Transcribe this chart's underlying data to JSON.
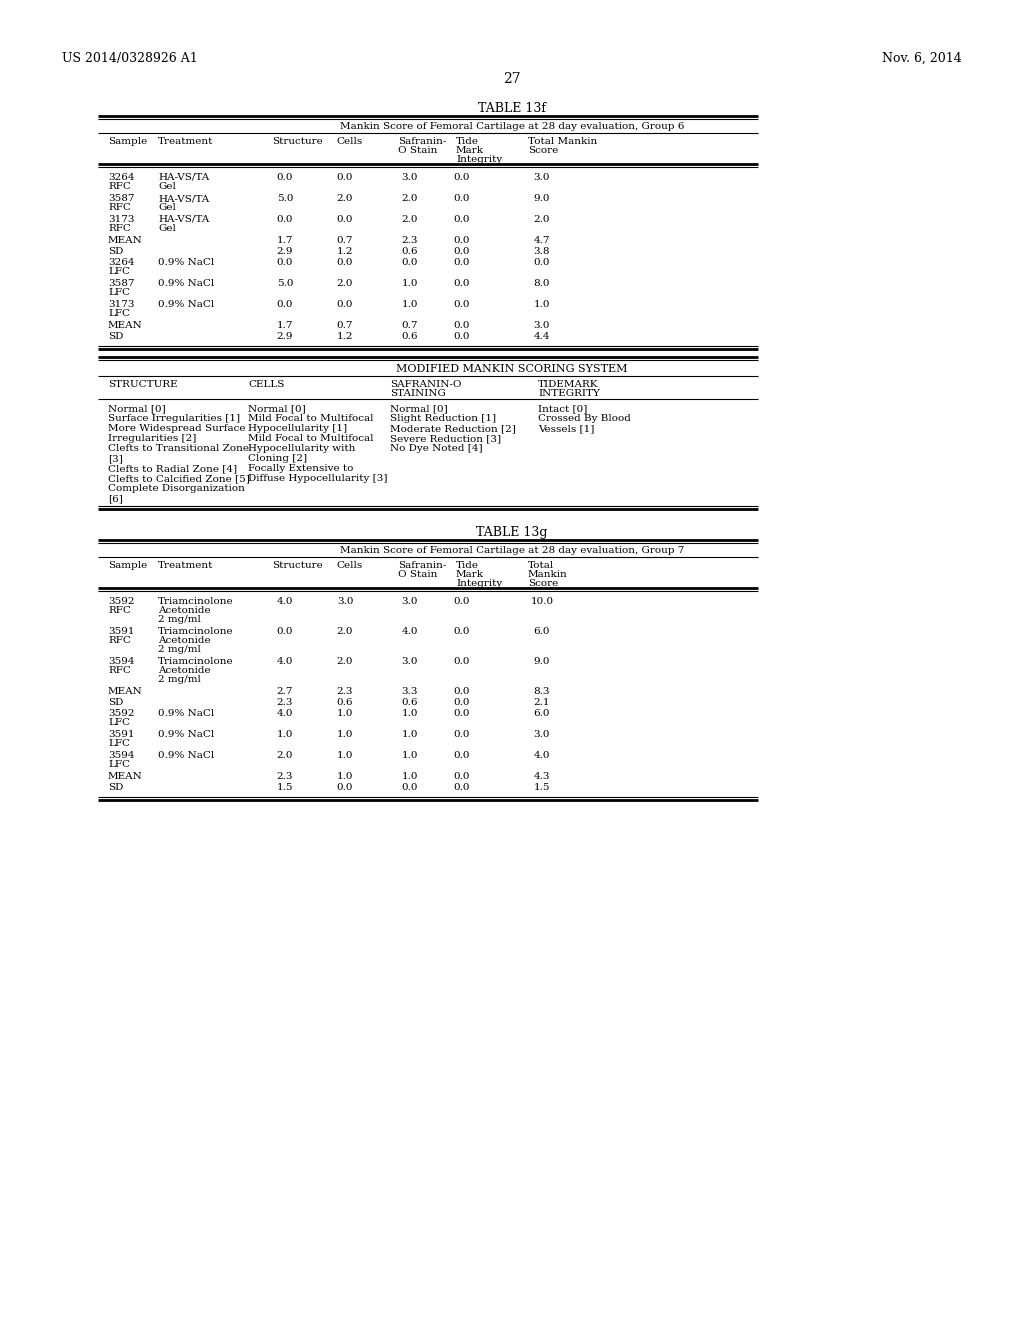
{
  "page_number": "27",
  "patent_left": "US 2014/0328926 A1",
  "patent_right": "Nov. 6, 2014",
  "table13f_title": "TABLE 13f",
  "table13f_subtitle": "Mankin Score of Femoral Cartilage at 28 day evaluation, Group 6",
  "table13g_title": "TABLE 13g",
  "table13g_subtitle": "Mankin Score of Femoral Cartilage at 28 day evaluation, Group 7",
  "scoring_title": "MODIFIED MANKIN SCORING SYSTEM",
  "bg_color": "#ffffff"
}
